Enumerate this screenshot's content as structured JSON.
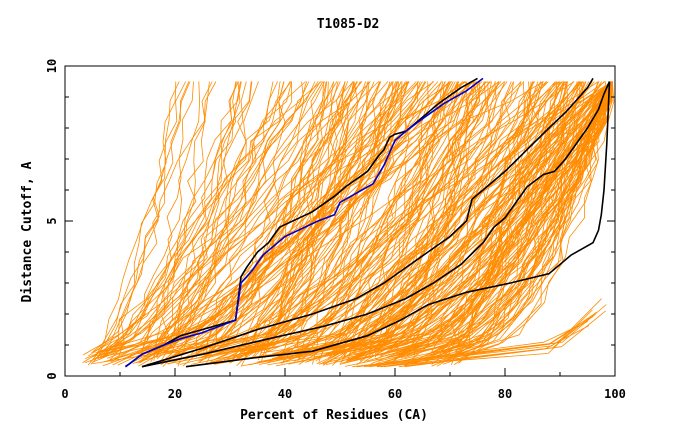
{
  "chart_data": {
    "type": "line",
    "title": "T1085-D2",
    "xlabel": "Percent of Residues (CA)",
    "ylabel": "Distance Cutoff, A",
    "xlim": [
      0,
      100
    ],
    "ylim": [
      0,
      10
    ],
    "x_ticks": [
      0,
      20,
      40,
      60,
      80,
      100
    ],
    "x_tick_labels": [
      "0",
      "20",
      "40",
      "60",
      "80",
      "100"
    ],
    "y_ticks": [
      0,
      5,
      10
    ],
    "y_tick_labels": [
      "0",
      "5",
      "10"
    ],
    "grid": false,
    "legend": "none",
    "colors": {
      "background_models": "#ff8c00",
      "highlight_black": "#000000",
      "highlight_blue": "#0000cc"
    },
    "background_models": {
      "count": 300,
      "start_pct_range": [
        3,
        72
      ],
      "end_cutoff": 9.5,
      "note_visible": false
    },
    "series": [
      {
        "color": "#000000",
        "x": [
          11,
          14,
          18,
          21,
          25,
          31,
          32,
          33,
          35,
          37,
          39,
          45,
          49,
          51,
          55,
          57,
          58,
          59,
          60,
          62,
          64,
          68,
          72,
          75
        ],
        "y": [
          0.3,
          0.7,
          1.0,
          1.3,
          1.5,
          1.8,
          3.2,
          3.5,
          4.0,
          4.3,
          4.8,
          5.3,
          5.8,
          6.1,
          6.6,
          7.1,
          7.3,
          7.7,
          7.8,
          7.9,
          8.2,
          8.8,
          9.3,
          9.6
        ]
      },
      {
        "color": "#0000cc",
        "x": [
          11,
          14,
          18,
          21,
          25,
          31,
          32,
          34,
          36,
          38,
          40,
          46,
          49,
          50,
          53,
          56,
          58,
          59,
          60,
          62,
          65,
          69,
          73,
          76
        ],
        "y": [
          0.3,
          0.7,
          1.0,
          1.2,
          1.4,
          1.8,
          3.0,
          3.4,
          3.9,
          4.2,
          4.5,
          5.0,
          5.2,
          5.6,
          5.9,
          6.2,
          6.8,
          7.2,
          7.6,
          7.9,
          8.3,
          8.8,
          9.2,
          9.6
        ]
      },
      {
        "color": "#000000",
        "x": [
          14,
          25,
          35,
          45,
          53,
          58,
          62,
          66,
          70,
          73,
          74,
          76,
          80,
          84,
          88,
          91,
          93,
          95,
          96
        ],
        "y": [
          0.3,
          0.9,
          1.5,
          2.0,
          2.5,
          3.0,
          3.5,
          4.0,
          4.5,
          5.0,
          5.7,
          6.0,
          6.6,
          7.3,
          8.0,
          8.5,
          8.9,
          9.3,
          9.6
        ]
      },
      {
        "color": "#000000",
        "x": [
          14,
          25,
          37,
          47,
          55,
          62,
          67,
          72,
          76,
          78,
          80,
          82,
          84,
          87,
          89,
          91,
          93,
          95,
          97,
          98,
          99
        ],
        "y": [
          0.3,
          0.7,
          1.2,
          1.6,
          2.0,
          2.5,
          3.0,
          3.6,
          4.3,
          4.8,
          5.1,
          5.6,
          6.1,
          6.5,
          6.6,
          7.0,
          7.5,
          8.0,
          8.6,
          9.1,
          9.5
        ]
      },
      {
        "color": "#000000",
        "x": [
          22,
          35,
          45,
          55,
          61,
          66,
          73,
          81,
          88,
          92,
          96,
          97,
          97.5,
          98,
          98.5,
          99
        ],
        "y": [
          0.3,
          0.6,
          0.8,
          1.3,
          1.8,
          2.3,
          2.7,
          3.0,
          3.3,
          3.9,
          4.3,
          4.7,
          5.2,
          6.0,
          7.5,
          9.5
        ]
      }
    ]
  }
}
